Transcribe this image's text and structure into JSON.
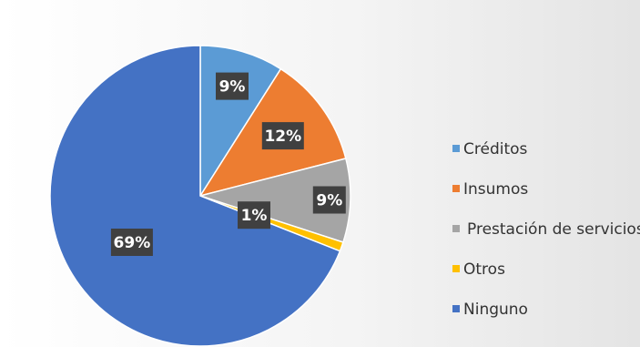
{
  "chart_data": {
    "type": "pie",
    "title": "",
    "slices": [
      {
        "label": "Créditos",
        "value": 9,
        "display": "9%",
        "color": "#5b9bd5"
      },
      {
        "label": "Insumos",
        "value": 12,
        "display": "12%",
        "color": "#ed7d31"
      },
      {
        "label": "Prestación de servicios",
        "value": 9,
        "display": "9%",
        "color": "#a5a5a5"
      },
      {
        "label": "Otros",
        "value": 1,
        "display": "1%",
        "color": "#ffc000"
      },
      {
        "label": "Ninguno",
        "value": 69,
        "display": "69%",
        "color": "#4472c4"
      }
    ],
    "legend_position": "right",
    "data_label_background": "#404040"
  }
}
